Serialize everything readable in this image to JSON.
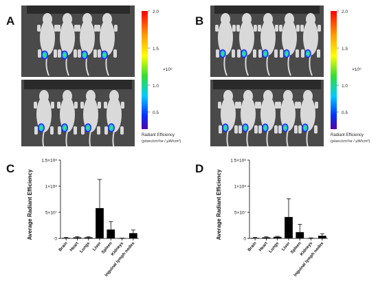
{
  "panels": {
    "a": {
      "letter": "A"
    },
    "b": {
      "letter": "B"
    },
    "c": {
      "letter": "C"
    },
    "d": {
      "letter": "D"
    }
  },
  "colorbar": {
    "ticks": [
      "2.0",
      "1.5",
      "1.0",
      "0.5"
    ],
    "exponent": "×10⁹",
    "label_line1": "Radiant Efficiency",
    "label_line2": "(p/sec/cm²/sr / μW/cm²)"
  },
  "colors": {
    "bar": "#000000",
    "photo_bg": "#4a4a4a",
    "mouse": "#d9d9d9"
  },
  "chart_data": [
    {
      "type": "bar",
      "ylabel": "Average Radiant Efficiency",
      "ytick_labels": [
        "0",
        "5×10⁷",
        "1×10⁸",
        "1.5×10⁸"
      ],
      "ylim": [
        0,
        150000000
      ],
      "categories": [
        "Brain",
        "Heart",
        "Lungs",
        "Liver",
        "Spleen",
        "Kidneys",
        "Inguinal lymph nodes"
      ],
      "values": [
        1000000,
        2000000,
        2000000,
        58000000,
        17000000,
        300000,
        10000000
      ],
      "errors": [
        1000000,
        1500000,
        1000000,
        55000000,
        15000000,
        300000,
        6000000
      ]
    },
    {
      "type": "bar",
      "ylabel": "Average Radiant Efficiency",
      "ytick_labels": [
        "0",
        "5×10⁷",
        "1×10⁸",
        "1.5×10⁸"
      ],
      "ylim": [
        0,
        150000000
      ],
      "categories": [
        "Brain",
        "Heart",
        "Lungs",
        "Liver",
        "Spleen",
        "Kidneys",
        "Inguinal lymph nodes"
      ],
      "values": [
        1000000,
        2000000,
        3000000,
        41000000,
        12000000,
        500000,
        5000000
      ],
      "errors": [
        1000000,
        1000000,
        1000000,
        35000000,
        15000000,
        500000,
        4000000
      ]
    }
  ]
}
